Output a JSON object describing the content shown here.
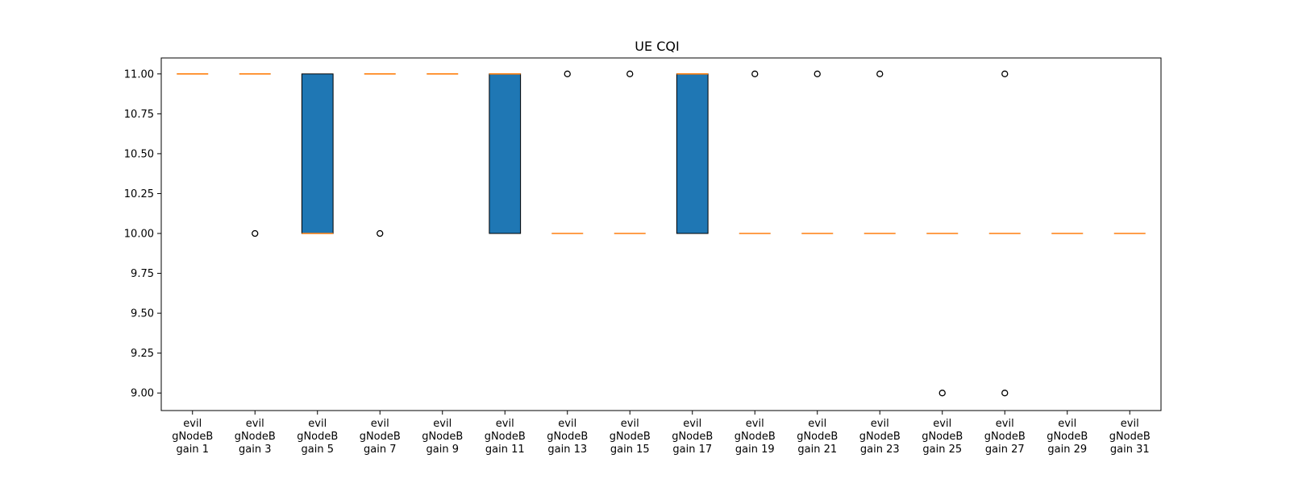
{
  "chart_data": {
    "type": "box",
    "title": "UE CQI",
    "xlabel": "",
    "ylabel": "",
    "ylim": [
      8.89,
      11.1
    ],
    "yticks": [
      9.0,
      9.25,
      9.5,
      9.75,
      10.0,
      10.25,
      10.5,
      10.75,
      11.0
    ],
    "ytick_labels": [
      "9.00",
      "9.25",
      "9.50",
      "9.75",
      "10.00",
      "10.25",
      "10.50",
      "10.75",
      "11.00"
    ],
    "grid": false,
    "box_fill": "#1f77b4",
    "median_color": "#ff7f0e",
    "categories": [
      [
        "evil",
        "gNodeB",
        "gain 1"
      ],
      [
        "evil",
        "gNodeB",
        "gain 3"
      ],
      [
        "evil",
        "gNodeB",
        "gain 5"
      ],
      [
        "evil",
        "gNodeB",
        "gain 7"
      ],
      [
        "evil",
        "gNodeB",
        "gain 9"
      ],
      [
        "evil",
        "gNodeB",
        "gain 11"
      ],
      [
        "evil",
        "gNodeB",
        "gain 13"
      ],
      [
        "evil",
        "gNodeB",
        "gain 15"
      ],
      [
        "evil",
        "gNodeB",
        "gain 17"
      ],
      [
        "evil",
        "gNodeB",
        "gain 19"
      ],
      [
        "evil",
        "gNodeB",
        "gain 21"
      ],
      [
        "evil",
        "gNodeB",
        "gain 23"
      ],
      [
        "evil",
        "gNodeB",
        "gain 25"
      ],
      [
        "evil",
        "gNodeB",
        "gain 27"
      ],
      [
        "evil",
        "gNodeB",
        "gain 29"
      ],
      [
        "evil",
        "gNodeB",
        "gain 31"
      ]
    ],
    "boxes": [
      {
        "q1": 11,
        "median": 11,
        "q3": 11,
        "whislo": 11,
        "whishi": 11,
        "fliers": []
      },
      {
        "q1": 11,
        "median": 11,
        "q3": 11,
        "whislo": 11,
        "whishi": 11,
        "fliers": [
          10
        ]
      },
      {
        "q1": 10,
        "median": 10,
        "q3": 11,
        "whislo": 10,
        "whishi": 11,
        "fliers": []
      },
      {
        "q1": 11,
        "median": 11,
        "q3": 11,
        "whislo": 11,
        "whishi": 11,
        "fliers": [
          10
        ]
      },
      {
        "q1": 11,
        "median": 11,
        "q3": 11,
        "whislo": 11,
        "whishi": 11,
        "fliers": []
      },
      {
        "q1": 10,
        "median": 11,
        "q3": 11,
        "whislo": 10,
        "whishi": 11,
        "fliers": []
      },
      {
        "q1": 10,
        "median": 10,
        "q3": 10,
        "whislo": 10,
        "whishi": 10,
        "fliers": [
          11
        ]
      },
      {
        "q1": 10,
        "median": 10,
        "q3": 10,
        "whislo": 10,
        "whishi": 10,
        "fliers": [
          11
        ]
      },
      {
        "q1": 10,
        "median": 11,
        "q3": 11,
        "whislo": 10,
        "whishi": 11,
        "fliers": []
      },
      {
        "q1": 10,
        "median": 10,
        "q3": 10,
        "whislo": 10,
        "whishi": 10,
        "fliers": [
          11
        ]
      },
      {
        "q1": 10,
        "median": 10,
        "q3": 10,
        "whislo": 10,
        "whishi": 10,
        "fliers": [
          11
        ]
      },
      {
        "q1": 10,
        "median": 10,
        "q3": 10,
        "whislo": 10,
        "whishi": 10,
        "fliers": [
          11
        ]
      },
      {
        "q1": 10,
        "median": 10,
        "q3": 10,
        "whislo": 10,
        "whishi": 10,
        "fliers": [
          9
        ]
      },
      {
        "q1": 10,
        "median": 10,
        "q3": 10,
        "whislo": 10,
        "whishi": 10,
        "fliers": [
          11,
          9
        ]
      },
      {
        "q1": 10,
        "median": 10,
        "q3": 10,
        "whislo": 10,
        "whishi": 10,
        "fliers": []
      },
      {
        "q1": 10,
        "median": 10,
        "q3": 10,
        "whislo": 10,
        "whishi": 10,
        "fliers": []
      }
    ]
  }
}
